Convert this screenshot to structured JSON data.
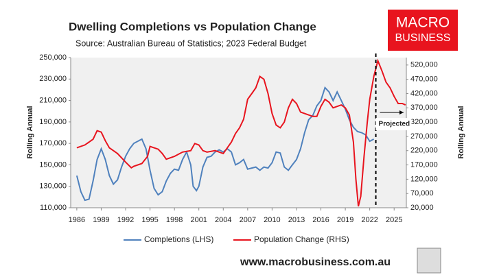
{
  "chart_data": {
    "type": "line",
    "title": "Dwelling Completions vs Population Change",
    "subtitle": "Source: Australian Bureau of Statistics; 2023 Federal Budget",
    "y_label": "Rolling Annual",
    "y2_label": "Rolling Annual",
    "brand": [
      "MACRO",
      "BUSINESS"
    ],
    "website": "www.macrobusiness.com.au",
    "annotation": {
      "text": "Projected",
      "x": 2022.75
    },
    "xlim": [
      1985.25,
      2026.5
    ],
    "xticks": [
      1986,
      1989,
      1992,
      1995,
      1998,
      2001,
      2004,
      2007,
      2010,
      2013,
      2016,
      2019,
      2022,
      2025
    ],
    "ylim": [
      110000,
      250000
    ],
    "yticks": [
      {
        "value": 110000,
        "label": "110,000"
      },
      {
        "value": 130000,
        "label": "130,000"
      },
      {
        "value": 150000,
        "label": "150,000"
      },
      {
        "value": 170000,
        "label": "170,000"
      },
      {
        "value": 190000,
        "label": "190,000"
      },
      {
        "value": 210000,
        "label": "210,000"
      },
      {
        "value": 230000,
        "label": "230,000"
      },
      {
        "value": 250000,
        "label": "250,000"
      }
    ],
    "y2lim": [
      20000,
      546000
    ],
    "y2ticks": [
      {
        "value": 20000,
        "label": "20,000"
      },
      {
        "value": 70000,
        "label": "70,000"
      },
      {
        "value": 120000,
        "label": "120,000"
      },
      {
        "value": 170000,
        "label": "170,000"
      },
      {
        "value": 220000,
        "label": "220,000"
      },
      {
        "value": 270000,
        "label": "270,000"
      },
      {
        "value": 320000,
        "label": "320,000"
      },
      {
        "value": 370000,
        "label": "370,000"
      },
      {
        "value": 420000,
        "label": "420,000"
      },
      {
        "value": 470000,
        "label": "470,000"
      },
      {
        "value": 520000,
        "label": "520,000"
      }
    ],
    "series": [
      {
        "name": "Completions (LHS)",
        "color": "#4f81bd",
        "axis": "y",
        "x": [
          1986,
          1986.5,
          1987,
          1987.5,
          1988,
          1988.5,
          1989,
          1989.5,
          1990,
          1990.5,
          1991,
          1991.5,
          1992,
          1992.5,
          1993,
          1993.5,
          1994,
          1994.5,
          1995,
          1995.5,
          1996,
          1996.5,
          1997,
          1997.5,
          1998,
          1998.5,
          1999,
          1999.5,
          2000,
          2000.3,
          2000.7,
          2001,
          2001.5,
          2002,
          2002.5,
          2003,
          2003.5,
          2004,
          2004.5,
          2005,
          2005.5,
          2006,
          2006.5,
          2007,
          2007.5,
          2008,
          2008.5,
          2009,
          2009.5,
          2010,
          2010.5,
          2011,
          2011.5,
          2012,
          2012.5,
          2013,
          2013.5,
          2014,
          2014.5,
          2015,
          2015.5,
          2016,
          2016.5,
          2017,
          2017.5,
          2018,
          2018.5,
          2019,
          2019.5,
          2020,
          2020.5,
          2021,
          2021.5,
          2022,
          2022.5
        ],
        "values": [
          140000,
          125000,
          117000,
          118000,
          135000,
          155000,
          165000,
          155000,
          140000,
          132000,
          136000,
          148000,
          158000,
          165000,
          170000,
          172000,
          174000,
          165000,
          145000,
          128000,
          122000,
          125000,
          135000,
          142000,
          146000,
          145000,
          155000,
          162000,
          150000,
          130000,
          126000,
          130000,
          148000,
          157000,
          158000,
          162000,
          164000,
          162000,
          165000,
          162000,
          150000,
          152000,
          155000,
          146000,
          147000,
          148000,
          145000,
          148000,
          147000,
          152000,
          162000,
          161000,
          148000,
          145000,
          150000,
          155000,
          165000,
          180000,
          192000,
          196000,
          205000,
          210000,
          222000,
          218000,
          210000,
          218000,
          210000,
          202000,
          192000,
          185000,
          181000,
          180000,
          178000,
          172000,
          174000
        ]
      },
      {
        "name": "Population Change (RHS)",
        "color": "#e8141e",
        "axis": "y2",
        "x": [
          1986,
          1987,
          1988,
          1988.5,
          1989,
          1989.5,
          1990,
          1991,
          1992,
          1992.7,
          1993,
          1994,
          1994.7,
          1995,
          1996,
          1996.5,
          1997,
          1998,
          1999,
          2000,
          2000.5,
          2001,
          2001.5,
          2002,
          2003,
          2004,
          2004.5,
          2005,
          2005.5,
          2006,
          2006.5,
          2007,
          2007.5,
          2008,
          2008.5,
          2009,
          2009.5,
          2010,
          2010.5,
          2011,
          2011.5,
          2012,
          2012.5,
          2013,
          2013.5,
          2014,
          2015,
          2015.5,
          2016,
          2016.5,
          2017,
          2017.5,
          2018,
          2018.5,
          2019,
          2019.5,
          2020,
          2020.3,
          2020.6,
          2020.9,
          2021.3,
          2021.7,
          2022,
          2022.5,
          2023,
          2023.5,
          2024,
          2024.5,
          2025,
          2025.5,
          2026,
          2026.4
        ],
        "values": [
          230000,
          240000,
          260000,
          290000,
          285000,
          255000,
          230000,
          210000,
          180000,
          160000,
          165000,
          175000,
          200000,
          235000,
          225000,
          210000,
          190000,
          200000,
          215000,
          220000,
          245000,
          240000,
          220000,
          215000,
          220000,
          210000,
          230000,
          250000,
          280000,
          300000,
          330000,
          400000,
          420000,
          440000,
          480000,
          470000,
          420000,
          350000,
          310000,
          300000,
          320000,
          370000,
          400000,
          385000,
          355000,
          350000,
          340000,
          340000,
          375000,
          400000,
          390000,
          370000,
          375000,
          380000,
          370000,
          345000,
          250000,
          120000,
          25000,
          60000,
          200000,
          320000,
          400000,
          480000,
          535000,
          500000,
          460000,
          440000,
          410000,
          385000,
          385000,
          380000
        ]
      }
    ]
  }
}
